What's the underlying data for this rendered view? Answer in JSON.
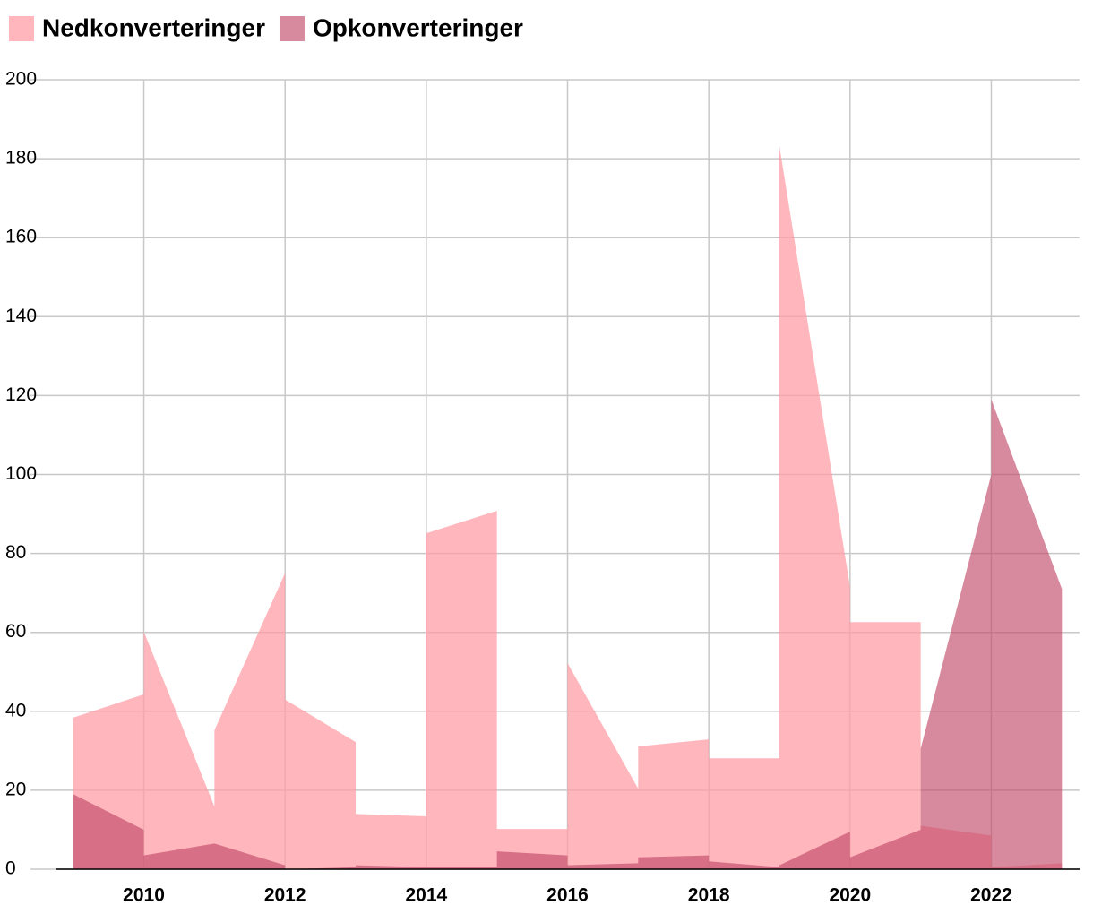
{
  "chart_data": {
    "type": "area",
    "x": [
      2009,
      2010,
      2010,
      2011,
      2011,
      2012,
      2012,
      2013,
      2013,
      2014,
      2014,
      2015,
      2015,
      2016,
      2016,
      2017,
      2017,
      2018,
      2018,
      2019,
      2019,
      2020,
      2020,
      2021,
      2021,
      2022,
      2022,
      2023
    ],
    "series": [
      {
        "name": "Nedkonverteringer",
        "color": "#ff9ea6",
        "values": [
          38.4,
          44.3,
          60.2,
          15.9,
          35.2,
          75,
          43,
          32.2,
          14,
          13.4,
          85.1,
          90.8,
          10.2,
          10.2,
          52.2,
          20.4,
          31.1,
          32.9,
          28.1,
          28.1,
          183.2,
          71.5,
          62.6,
          62.6,
          11,
          8.5,
          0.5,
          1.5
        ]
      },
      {
        "name": "Opkonverteringer",
        "color": "#c24a68",
        "values": [
          19,
          10,
          3.5,
          6.5,
          6.5,
          1,
          0,
          0.5,
          1,
          0.5,
          0.5,
          0.5,
          4.5,
          3.5,
          1,
          1.5,
          3,
          3.5,
          2,
          0.5,
          1,
          9.5,
          3,
          10,
          30.5,
          100,
          119,
          71
        ]
      }
    ],
    "xlim": [
      2008.75,
      2023.25
    ],
    "xticks": [
      2010,
      2012,
      2014,
      2016,
      2018,
      2020,
      2022
    ],
    "ylim": [
      0,
      200
    ],
    "yticks": [
      0,
      20,
      40,
      60,
      80,
      100,
      120,
      140,
      160,
      180,
      200
    ],
    "grid": true,
    "legend": "top-left"
  }
}
